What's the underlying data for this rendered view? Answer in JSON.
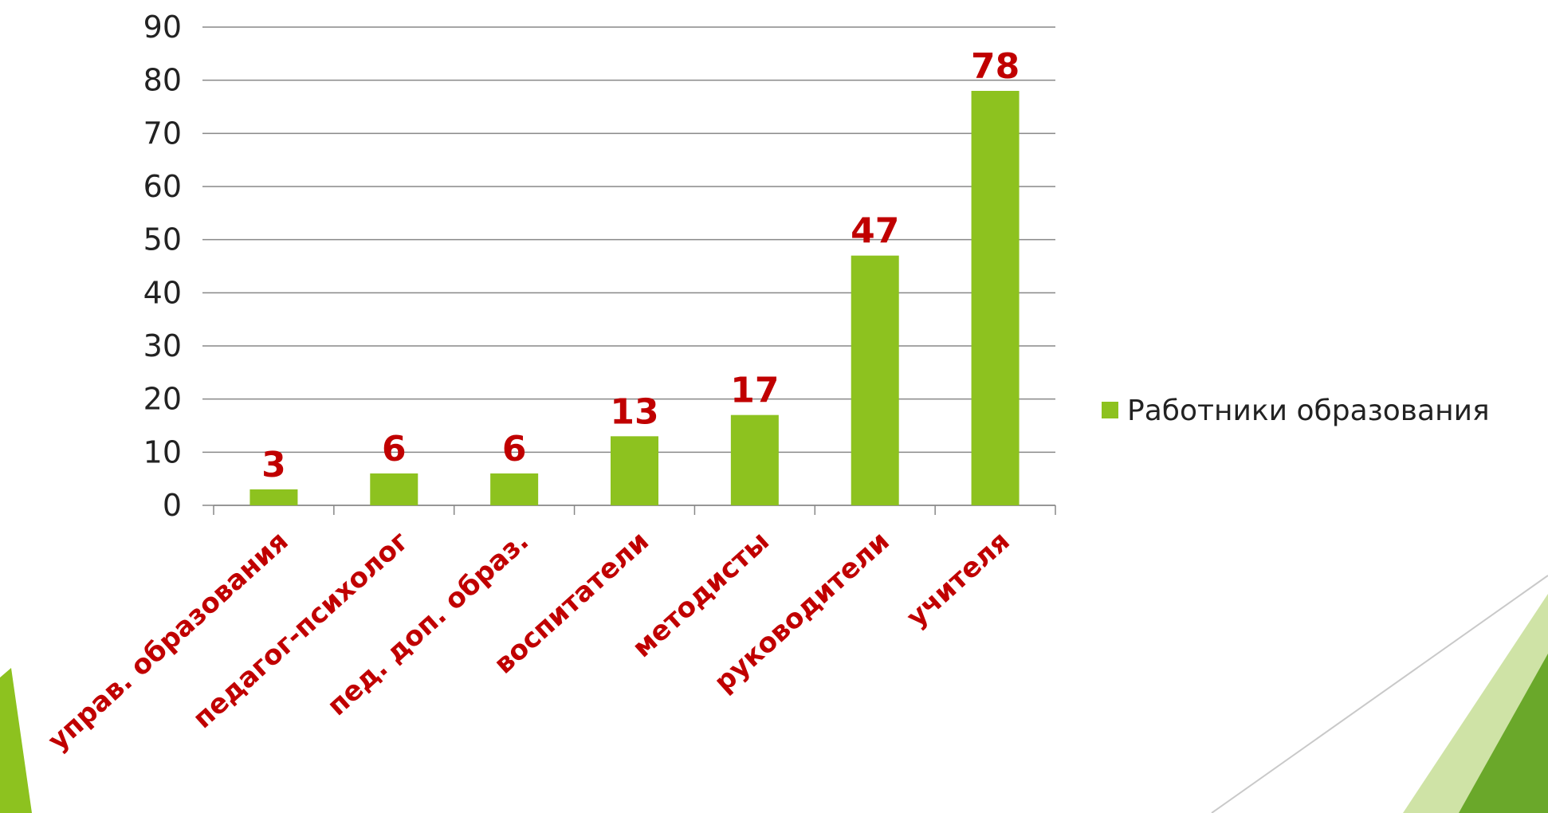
{
  "chart_data": {
    "type": "bar",
    "categories": [
      "управ. образования",
      "педагог-психолог",
      "пед. доп. образ.",
      "воспитатели",
      "методисты",
      "руководители",
      "учителя"
    ],
    "series": [
      {
        "name": "Работники образования",
        "values": [
          3,
          6,
          6,
          13,
          17,
          47,
          78
        ]
      }
    ],
    "data_labels": [
      "3",
      "6",
      "6",
      "13",
      "17",
      "47",
      "78"
    ],
    "y_ticks": [
      "0",
      "10",
      "20",
      "30",
      "40",
      "50",
      "60",
      "70",
      "80",
      "90"
    ],
    "ylim": [
      0,
      90
    ],
    "grid": true,
    "legend_position": "right",
    "colors": {
      "bar": "#8dc21f",
      "data_label": "#c00000",
      "category_label": "#c00000",
      "grid": "#888888",
      "accent_light": "#cfe3a6",
      "accent_dark": "#6aa82a"
    }
  }
}
